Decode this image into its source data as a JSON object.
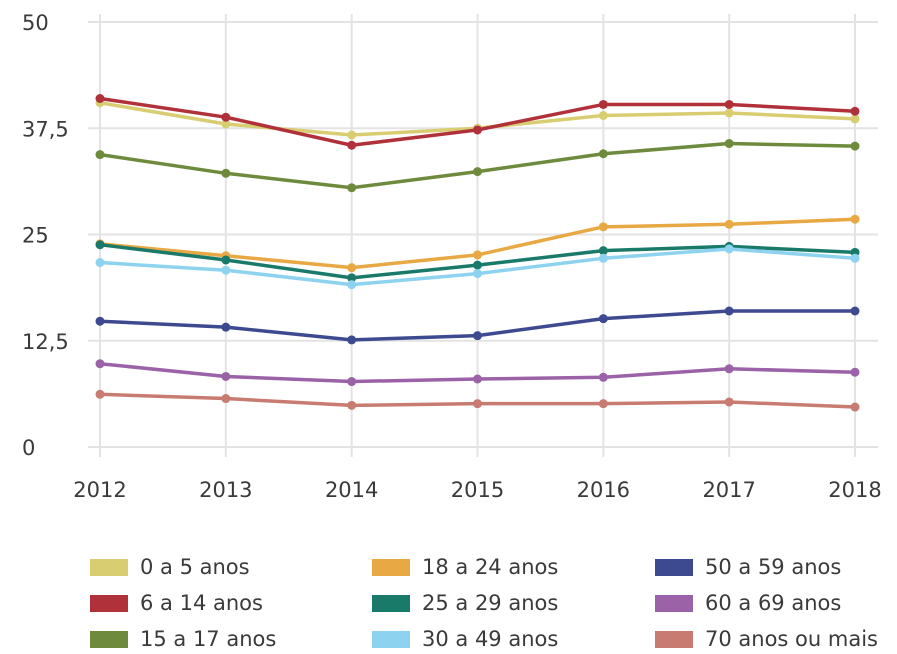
{
  "chart_data": {
    "type": "line",
    "x": [
      "2012",
      "2013",
      "2014",
      "2015",
      "2016",
      "2017",
      "2018"
    ],
    "ylim": [
      0,
      50
    ],
    "yticks": [
      "0",
      "12,5",
      "25",
      "37,5",
      "50"
    ],
    "ytick_values": [
      0,
      12.5,
      25,
      37.5,
      50
    ],
    "grid": true,
    "legend_position": "bottom",
    "series": [
      {
        "name": "0 a 5 anos",
        "color": "#d9cd72",
        "values": [
          40.5,
          38.0,
          36.7,
          37.5,
          39.0,
          39.3,
          38.6
        ]
      },
      {
        "name": "6 a 14 anos",
        "color": "#b0313a",
        "values": [
          41.0,
          38.8,
          35.5,
          37.3,
          40.3,
          40.3,
          39.5
        ]
      },
      {
        "name": "15 a 17 anos",
        "color": "#6e8b3d",
        "values": [
          34.4,
          32.2,
          30.5,
          32.4,
          34.5,
          35.7,
          35.4
        ]
      },
      {
        "name": "18 a 24 anos",
        "color": "#e8a843",
        "values": [
          23.9,
          22.5,
          21.1,
          22.6,
          25.9,
          26.2,
          26.8
        ]
      },
      {
        "name": "25 a 29 anos",
        "color": "#1a7a6a",
        "values": [
          23.8,
          22.0,
          19.9,
          21.4,
          23.1,
          23.6,
          22.9
        ]
      },
      {
        "name": "30 a 49 anos",
        "color": "#8dd3f0",
        "values": [
          21.7,
          20.8,
          19.1,
          20.4,
          22.2,
          23.3,
          22.2
        ]
      },
      {
        "name": "50 a 59 anos",
        "color": "#3e4a8f",
        "values": [
          14.8,
          14.1,
          12.6,
          13.1,
          15.1,
          16.0,
          16.0
        ]
      },
      {
        "name": "60 a 69 anos",
        "color": "#9b62a8",
        "values": [
          9.8,
          8.3,
          7.7,
          8.0,
          8.2,
          9.2,
          8.8
        ]
      },
      {
        "name": "70 anos ou mais",
        "color": "#c87b70",
        "values": [
          6.2,
          5.7,
          4.9,
          5.1,
          5.1,
          5.3,
          4.7
        ]
      }
    ]
  },
  "legend": {
    "items": [
      "0 a 5 anos",
      "6 a 14 anos",
      "15 a 17 anos",
      "18 a 24 anos",
      "25 a 29 anos",
      "30 a 49 anos",
      "50 a 59 anos",
      "60 a 69 anos",
      "70 anos ou mais"
    ]
  }
}
